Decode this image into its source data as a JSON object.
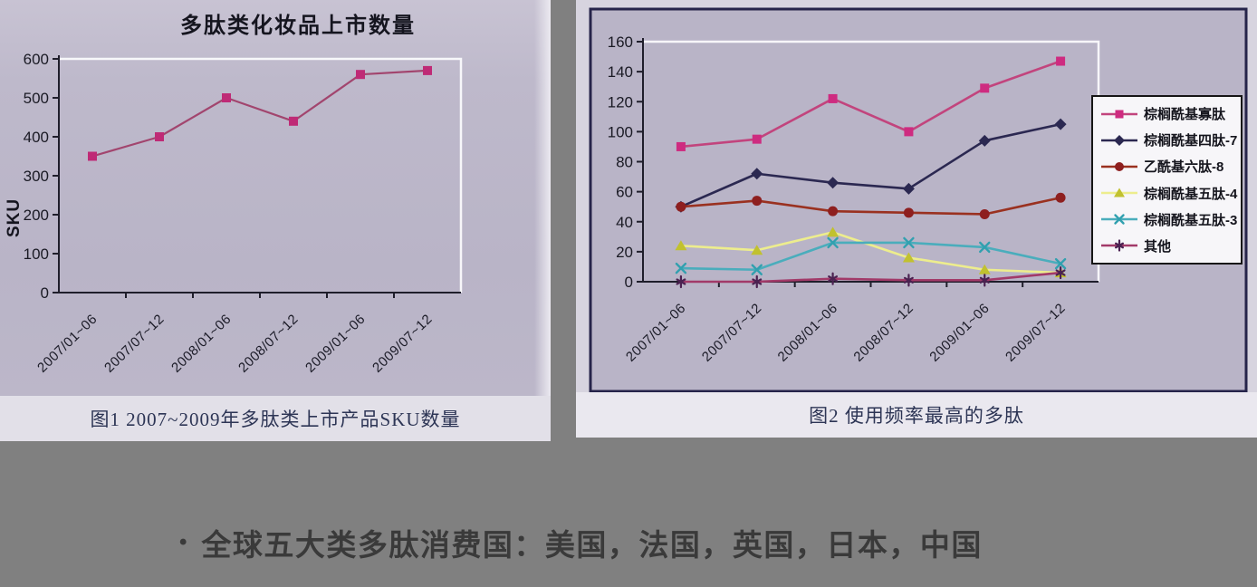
{
  "page": {
    "background_color": "#808080",
    "bullet": {
      "marker": "•",
      "text": "全球五大类多肽消费国：美国，法国，英国，日本，中国"
    }
  },
  "figures": [
    {
      "caption": "图1 2007~2009年多肽类上市产品SKU数量"
    },
    {
      "caption": "图2 使用频率最高的多肽"
    }
  ],
  "chart_data": [
    {
      "type": "line",
      "title": "多肽类化妆品上市数量",
      "xlabel": "",
      "ylabel": "SKU",
      "categories": [
        "2007/01~06",
        "2007/07~12",
        "2008/01~06",
        "2008/07~12",
        "2009/01~06",
        "2009/07~12"
      ],
      "ylim": [
        0,
        600
      ],
      "ytick_step": 100,
      "grid": false,
      "legend_position": "none",
      "series": [
        {
          "name": "上市数量",
          "values": [
            350,
            400,
            500,
            440,
            560,
            570
          ],
          "line_color": "#a2456e",
          "marker_color": "#bf2a76",
          "marker": "square"
        }
      ]
    },
    {
      "type": "line",
      "title": "",
      "xlabel": "",
      "ylabel": "",
      "categories": [
        "2007/01~06",
        "2007/07~12",
        "2008/01~06",
        "2008/07~12",
        "2009/01~06",
        "2009/07~12"
      ],
      "ylim": [
        0,
        160
      ],
      "ytick_step": 20,
      "grid": false,
      "legend_position": "right",
      "series": [
        {
          "name": "棕榈酰基寡肽",
          "values": [
            90,
            95,
            122,
            100,
            129,
            147
          ],
          "line_color": "#c2447d",
          "marker_color": "#ce2b80",
          "marker": "square"
        },
        {
          "name": "棕榈酰基四肽-7",
          "values": [
            50,
            72,
            66,
            62,
            94,
            105
          ],
          "line_color": "#2b2851",
          "marker_color": "#2b2851",
          "marker": "diamond"
        },
        {
          "name": "乙酰基六肽-8",
          "values": [
            50,
            54,
            47,
            46,
            45,
            56
          ],
          "line_color": "#9a3120",
          "marker_color": "#8e1f1f",
          "marker": "circle"
        },
        {
          "name": "棕榈酰基五肽-4",
          "values": [
            24,
            21,
            33,
            16,
            8,
            6
          ],
          "line_color": "#eded8d",
          "marker_color": "#c1c12f",
          "marker": "triangle"
        },
        {
          "name": "棕榈酰基五肽-3",
          "values": [
            9,
            8,
            26,
            26,
            23,
            12
          ],
          "line_color": "#4aadbc",
          "marker_color": "#31a0af",
          "marker": "x"
        },
        {
          "name": "其他",
          "values": [
            0,
            0,
            2,
            1,
            1,
            6
          ],
          "line_color": "#a23a69",
          "marker_color": "#4b2151",
          "marker": "asterisk"
        }
      ]
    }
  ]
}
